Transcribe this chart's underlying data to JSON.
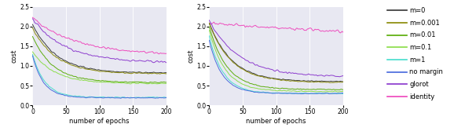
{
  "xlabel": "number of epochs",
  "ylabel": "cost",
  "xlim": [
    0,
    200
  ],
  "ylim": [
    0.0,
    2.5
  ],
  "yticks": [
    0.0,
    0.5,
    1.0,
    1.5,
    2.0,
    2.5
  ],
  "xticks": [
    0,
    50,
    100,
    150,
    200
  ],
  "n_epochs": 201,
  "background_color": "#e8e8f2",
  "legend_labels": [
    "m=0",
    "m=0.001",
    "m=0.01",
    "m=0.1",
    "m=1",
    "no margin",
    "glorot",
    "identity"
  ],
  "legend_colors": [
    "#333333",
    "#888800",
    "#55aa00",
    "#88dd44",
    "#44ddcc",
    "#4466dd",
    "#8833cc",
    "#ee44bb"
  ],
  "plot1": {
    "curves": [
      {
        "label": "identity",
        "color": "#ee44bb",
        "start": 2.22,
        "end": 1.27,
        "decay": 0.015,
        "noise": 0.025,
        "noise_scale": 1.5
      },
      {
        "label": "glorot",
        "color": "#8833cc",
        "start": 2.18,
        "end": 1.08,
        "decay": 0.02,
        "noise": 0.022,
        "noise_scale": 1.2
      },
      {
        "label": "m=0",
        "color": "#333333",
        "start": 2.05,
        "end": 0.82,
        "decay": 0.028,
        "noise": 0.012,
        "noise_scale": 0.8
      },
      {
        "label": "m=0.001",
        "color": "#888800",
        "start": 1.95,
        "end": 0.8,
        "decay": 0.028,
        "noise": 0.012,
        "noise_scale": 0.8
      },
      {
        "label": "m=0.01",
        "color": "#55aa00",
        "start": 1.75,
        "end": 0.58,
        "decay": 0.033,
        "noise": 0.012,
        "noise_scale": 0.8
      },
      {
        "label": "m=0.1",
        "color": "#88dd44",
        "start": 1.35,
        "end": 0.55,
        "decay": 0.03,
        "noise": 0.012,
        "noise_scale": 0.8
      },
      {
        "label": "m=1",
        "color": "#44ddcc",
        "start": 1.3,
        "end": 0.2,
        "decay": 0.055,
        "noise": 0.01,
        "noise_scale": 0.8
      },
      {
        "label": "no margin",
        "color": "#4466dd",
        "start": 1.25,
        "end": 0.19,
        "decay": 0.06,
        "noise": 0.008,
        "noise_scale": 0.8
      }
    ]
  },
  "plot2": {
    "curves": [
      {
        "label": "identity",
        "color": "#ee44bb",
        "start": 2.08,
        "end": 1.72,
        "decay": 0.004,
        "noise": 0.032,
        "noise_scale": 2.0
      },
      {
        "label": "glorot",
        "color": "#8833cc",
        "start": 2.15,
        "end": 0.72,
        "decay": 0.022,
        "noise": 0.018,
        "noise_scale": 1.0
      },
      {
        "label": "m=0",
        "color": "#333333",
        "start": 2.1,
        "end": 0.6,
        "decay": 0.03,
        "noise": 0.01,
        "noise_scale": 0.8
      },
      {
        "label": "m=0.001",
        "color": "#888800",
        "start": 2.08,
        "end": 0.58,
        "decay": 0.03,
        "noise": 0.01,
        "noise_scale": 0.8
      },
      {
        "label": "m=0.01",
        "color": "#55aa00",
        "start": 2.0,
        "end": 0.4,
        "decay": 0.038,
        "noise": 0.01,
        "noise_scale": 0.8
      },
      {
        "label": "m=0.1",
        "color": "#88dd44",
        "start": 1.9,
        "end": 0.35,
        "decay": 0.042,
        "noise": 0.01,
        "noise_scale": 0.8
      },
      {
        "label": "m=1",
        "color": "#44ddcc",
        "start": 1.75,
        "end": 0.3,
        "decay": 0.048,
        "noise": 0.008,
        "noise_scale": 0.8
      },
      {
        "label": "no margin",
        "color": "#4466dd",
        "start": 1.65,
        "end": 0.3,
        "decay": 0.052,
        "noise": 0.008,
        "noise_scale": 0.8
      }
    ]
  }
}
